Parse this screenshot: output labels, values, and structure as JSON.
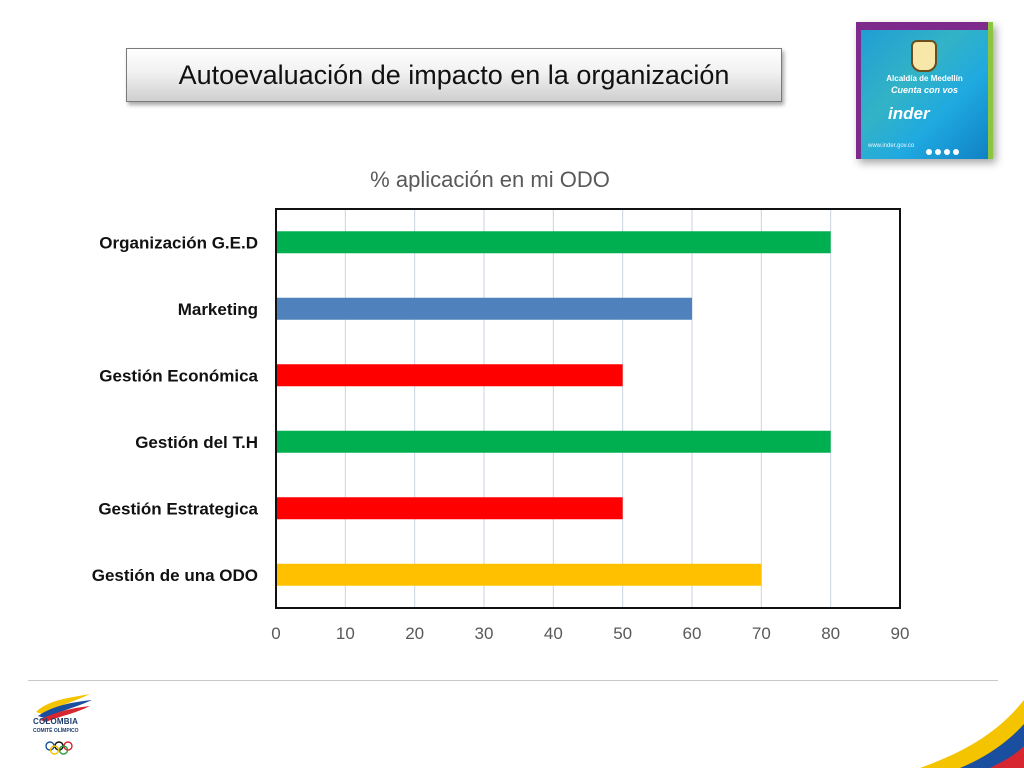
{
  "slide": {
    "title": "Autoevaluación de impacto en la organización"
  },
  "logo": {
    "line1": "Alcaldía de Medellín",
    "line2": "Cuenta con vos",
    "brand": "inder",
    "url": "www.inder.gov.co"
  },
  "footer_logo": {
    "name": "COLOMBIA",
    "sub": "COMITÉ OLÍMPICO"
  },
  "chart_data": {
    "type": "bar",
    "orientation": "horizontal",
    "title": "% aplicación en mi ODO",
    "categories": [
      "Organización G.E.D",
      "Marketing",
      "Gestión Económica",
      "Gestión del T.H",
      "Gestión Estrategica",
      "Gestión de una ODO"
    ],
    "values": [
      80,
      60,
      50,
      80,
      50,
      70
    ],
    "colors": [
      "#00b050",
      "#4f81bd",
      "#ff0000",
      "#00b050",
      "#ff0000",
      "#ffc000"
    ],
    "xlim": [
      0,
      90
    ],
    "xticks": [
      0,
      10,
      20,
      30,
      40,
      50,
      60,
      70,
      80,
      90
    ],
    "grid": true,
    "legend": "none"
  }
}
